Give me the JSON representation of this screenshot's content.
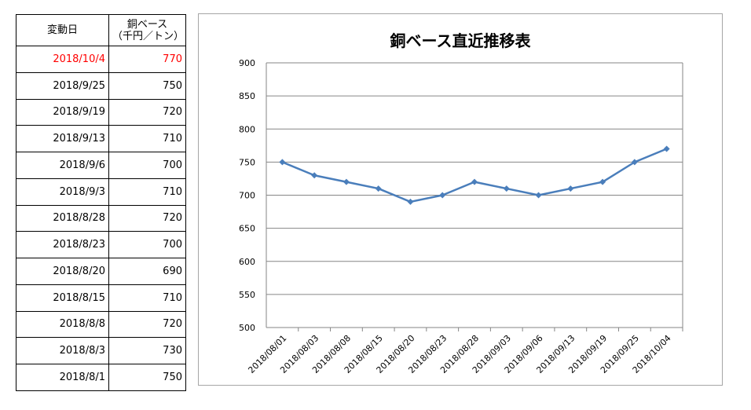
{
  "table": {
    "header": {
      "date": "変動日",
      "value_line1": "銅ベース",
      "value_line2": "（千円／トン）"
    },
    "rows": [
      {
        "date": "2018/10/4",
        "value": "770"
      },
      {
        "date": "2018/9/25",
        "value": "750"
      },
      {
        "date": "2018/9/19",
        "value": "720"
      },
      {
        "date": "2018/9/13",
        "value": "710"
      },
      {
        "date": "2018/9/6",
        "value": "700"
      },
      {
        "date": "2018/9/3",
        "value": "710"
      },
      {
        "date": "2018/8/28",
        "value": "720"
      },
      {
        "date": "2018/8/23",
        "value": "700"
      },
      {
        "date": "2018/8/20",
        "value": "690"
      },
      {
        "date": "2018/8/15",
        "value": "710"
      },
      {
        "date": "2018/8/8",
        "value": "720"
      },
      {
        "date": "2018/8/3",
        "value": "730"
      },
      {
        "date": "2018/8/1",
        "value": "750"
      }
    ],
    "highlight_color": "#ff0000"
  },
  "chart_data": {
    "type": "line",
    "title": "銅ベース直近推移表",
    "xlabel": "",
    "ylabel": "",
    "categories": [
      "2018/08/01",
      "2018/08/03",
      "2018/08/08",
      "2018/08/15",
      "2018/08/20",
      "2018/08/23",
      "2018/08/28",
      "2018/09/03",
      "2018/09/06",
      "2018/09/13",
      "2018/09/19",
      "2018/09/25",
      "2018/10/04"
    ],
    "series": [
      {
        "values": [
          750,
          730,
          720,
          710,
          690,
          700,
          720,
          710,
          700,
          710,
          720,
          750,
          770
        ],
        "color": "#4a7ebb"
      }
    ],
    "ylim": [
      500,
      900
    ],
    "yticks": [
      500,
      550,
      600,
      650,
      700,
      750,
      800,
      850,
      900
    ],
    "grid": true,
    "legend": "none",
    "marker": "diamond"
  }
}
